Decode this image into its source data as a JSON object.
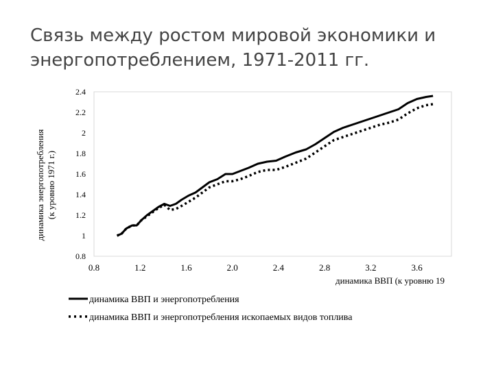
{
  "title_line1": "Связь между ростом мировой экономики и",
  "title_line2": "энергопотреблением, 1971-2011 гг.",
  "chart_data": {
    "type": "line",
    "title": "Связь между ростом мировой экономики и энергопотреблением, 1971-2011 гг.",
    "xlabel": "динамика ВВП (к уровню 19",
    "ylabel_line1": "динамика энергопотребления",
    "ylabel_line2": "(к уровню 1971 г.)",
    "xlim": [
      0.8,
      3.9
    ],
    "ylim": [
      0.8,
      2.4
    ],
    "x_ticks": [
      0.8,
      1.2,
      1.6,
      2.0,
      2.4,
      2.8,
      3.2,
      3.6
    ],
    "x_tick_labels": [
      "0.8",
      "1.2",
      "1.6",
      "2.0",
      "2.4",
      "2.8",
      "3.2",
      "3.6"
    ],
    "y_ticks": [
      0.8,
      1,
      1.2,
      1.4,
      1.6,
      1.8,
      2,
      2.2,
      2.4
    ],
    "y_tick_labels": [
      "0.8",
      "1",
      "1.2",
      "1.4",
      "1.6",
      "1.8",
      "2",
      "2.2",
      "2.4"
    ],
    "grid": false,
    "legend_position": "bottom",
    "series": [
      {
        "name": "динамика ВВП и энергопотребления",
        "style": "solid",
        "color": "#000000",
        "points": [
          [
            1.0,
            1.0
          ],
          [
            1.04,
            1.02
          ],
          [
            1.08,
            1.07
          ],
          [
            1.13,
            1.1
          ],
          [
            1.17,
            1.1
          ],
          [
            1.21,
            1.15
          ],
          [
            1.26,
            1.2
          ],
          [
            1.31,
            1.24
          ],
          [
            1.36,
            1.28
          ],
          [
            1.41,
            1.31
          ],
          [
            1.46,
            1.29
          ],
          [
            1.51,
            1.31
          ],
          [
            1.56,
            1.35
          ],
          [
            1.62,
            1.39
          ],
          [
            1.68,
            1.42
          ],
          [
            1.74,
            1.47
          ],
          [
            1.8,
            1.52
          ],
          [
            1.87,
            1.55
          ],
          [
            1.94,
            1.6
          ],
          [
            2.0,
            1.6
          ],
          [
            2.07,
            1.63
          ],
          [
            2.14,
            1.66
          ],
          [
            2.22,
            1.7
          ],
          [
            2.3,
            1.72
          ],
          [
            2.38,
            1.73
          ],
          [
            2.46,
            1.77
          ],
          [
            2.55,
            1.81
          ],
          [
            2.64,
            1.84
          ],
          [
            2.72,
            1.89
          ],
          [
            2.8,
            1.95
          ],
          [
            2.88,
            2.01
          ],
          [
            2.96,
            2.05
          ],
          [
            3.04,
            2.08
          ],
          [
            3.12,
            2.11
          ],
          [
            3.2,
            2.14
          ],
          [
            3.28,
            2.17
          ],
          [
            3.36,
            2.2
          ],
          [
            3.44,
            2.23
          ],
          [
            3.52,
            2.29
          ],
          [
            3.6,
            2.33
          ],
          [
            3.68,
            2.35
          ],
          [
            3.74,
            2.36
          ]
        ]
      },
      {
        "name": "динамика ВВП и энергопотребления ископаемых видов топлива",
        "style": "dotted",
        "color": "#000000",
        "points": [
          [
            1.0,
            1.0
          ],
          [
            1.04,
            1.02
          ],
          [
            1.08,
            1.07
          ],
          [
            1.13,
            1.1
          ],
          [
            1.17,
            1.1
          ],
          [
            1.21,
            1.15
          ],
          [
            1.26,
            1.19
          ],
          [
            1.31,
            1.23
          ],
          [
            1.36,
            1.27
          ],
          [
            1.41,
            1.3
          ],
          [
            1.46,
            1.25
          ],
          [
            1.51,
            1.26
          ],
          [
            1.56,
            1.29
          ],
          [
            1.62,
            1.33
          ],
          [
            1.68,
            1.37
          ],
          [
            1.74,
            1.42
          ],
          [
            1.8,
            1.47
          ],
          [
            1.87,
            1.5
          ],
          [
            1.94,
            1.53
          ],
          [
            2.0,
            1.53
          ],
          [
            2.07,
            1.55
          ],
          [
            2.14,
            1.58
          ],
          [
            2.22,
            1.62
          ],
          [
            2.3,
            1.64
          ],
          [
            2.38,
            1.64
          ],
          [
            2.46,
            1.67
          ],
          [
            2.55,
            1.71
          ],
          [
            2.64,
            1.75
          ],
          [
            2.72,
            1.81
          ],
          [
            2.8,
            1.87
          ],
          [
            2.88,
            1.93
          ],
          [
            2.96,
            1.96
          ],
          [
            3.04,
            1.99
          ],
          [
            3.12,
            2.02
          ],
          [
            3.2,
            2.05
          ],
          [
            3.28,
            2.08
          ],
          [
            3.36,
            2.1
          ],
          [
            3.44,
            2.13
          ],
          [
            3.52,
            2.19
          ],
          [
            3.6,
            2.24
          ],
          [
            3.68,
            2.27
          ],
          [
            3.74,
            2.28
          ]
        ]
      }
    ]
  }
}
